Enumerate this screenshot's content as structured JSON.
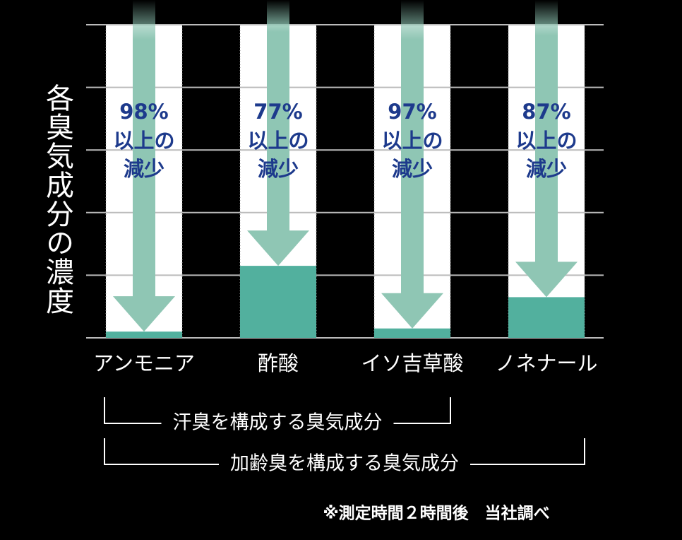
{
  "chart_data": {
    "type": "reduction-bar",
    "y_label": "各臭気成分の濃度",
    "categories": [
      "アンモニア",
      "酢酸",
      "イソ吉草酸",
      "ノネナール"
    ],
    "values": [
      98,
      77,
      97,
      87
    ],
    "value_labels": [
      "98%",
      "77%",
      "97%",
      "87%"
    ],
    "reduction_label": [
      "以上の",
      "減少"
    ],
    "ylim": [
      0,
      100
    ],
    "yticks": [
      0,
      20,
      40,
      60,
      80,
      100
    ],
    "grid": true,
    "color": "#52b09e",
    "arrow_color": "#8fc6b4",
    "label_color": "#1d3a8c",
    "groups": [
      {
        "label": "汗臭を構成する臭気成分",
        "from": 0,
        "to": 2
      },
      {
        "label": "加齢臭を構成する臭気成分",
        "from": 0,
        "to": 3
      }
    ],
    "footnote": "※測定時間２時間後　当社調べ"
  }
}
